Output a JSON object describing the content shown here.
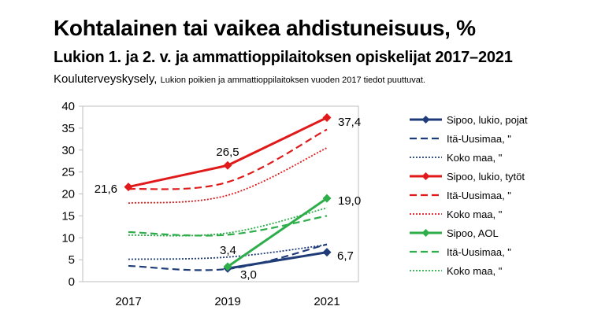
{
  "title": "Kohtalainen tai vaikea ahdistuneisuus, %",
  "subtitle": "Lukion 1. ja 2. v. ja ammattioppilaitoksen opiskelijat 2017–2021",
  "source": "Kouluterveyskysely,",
  "note": "Lukion poikien ja ammattioppilaitoksen vuoden 2017 tiedot puuttuvat.",
  "colors": {
    "navy": "#1f3c78",
    "red": "#e01a1a",
    "green": "#2eae4a"
  },
  "chart_data": {
    "type": "line",
    "x": [
      "2017",
      "2019",
      "2021"
    ],
    "ylim": [
      0,
      40
    ],
    "yticks": [
      0,
      5,
      10,
      15,
      20,
      25,
      30,
      35,
      40
    ],
    "grid": false,
    "legend_position": "right",
    "series": [
      {
        "name": "Sipoo, lukio, pojat",
        "color": "#1f3c78",
        "style": "solid",
        "marker": "diamond",
        "values": [
          null,
          3.0,
          6.7
        ],
        "labels": [
          "",
          "3,0",
          "6,7"
        ]
      },
      {
        "name": "Itä-Uusimaa, \"",
        "color": "#1f3c78",
        "style": "dashed",
        "values": [
          3.6,
          2.9,
          8.5
        ]
      },
      {
        "name": "Koko maa, \"",
        "color": "#1f3c78",
        "style": "dotted",
        "values": [
          5.1,
          5.6,
          8.4
        ]
      },
      {
        "name": "Sipoo, lukio, tytöt",
        "color": "#e01a1a",
        "style": "solid",
        "marker": "diamond",
        "values": [
          21.6,
          26.5,
          37.4
        ],
        "labels": [
          "21,6",
          "26,5",
          "37,4"
        ]
      },
      {
        "name": "Itä-Uusimaa, \"",
        "color": "#e01a1a",
        "style": "dashed",
        "values": [
          21.1,
          22.7,
          34.7
        ]
      },
      {
        "name": "Koko maa, \"",
        "color": "#e01a1a",
        "style": "dotted",
        "values": [
          17.9,
          19.7,
          30.5
        ]
      },
      {
        "name": "Sipoo, AOL",
        "color": "#2eae4a",
        "style": "solid",
        "marker": "diamond",
        "values": [
          null,
          3.4,
          19.0
        ],
        "labels": [
          "",
          "3,4",
          "19,0"
        ]
      },
      {
        "name": "Itä-Uusimaa, \"",
        "color": "#2eae4a",
        "style": "dashed",
        "values": [
          11.3,
          10.7,
          15.0
        ]
      },
      {
        "name": "Koko maa, \"",
        "color": "#2eae4a",
        "style": "dotted",
        "values": [
          10.6,
          11.1,
          16.8
        ]
      }
    ]
  }
}
